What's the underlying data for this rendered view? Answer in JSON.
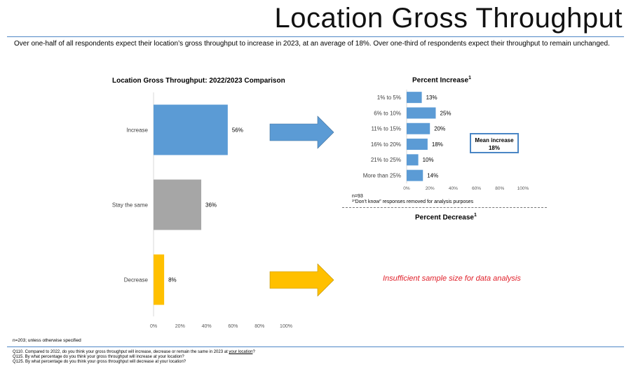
{
  "page": {
    "title": "Location Gross Throughput",
    "subtitle": "Over one-half of all respondents expect their location’s gross throughput to increase in 2023, at an average of 18%.  Over one-third of respondents expect their throughput  to remain unchanged.",
    "sample_note": "n=203; unless otherwise specified",
    "questions": {
      "q110_before": "Q110. Compared  to 2022, do you think your gross throughput will increase, decrease  or remain  the same in 2023 at ",
      "q110_link": "your location",
      "q110_after": "?",
      "q115": "Q115. By what percentage  do you think your gross throughput will increase  at your location?",
      "q125": "Q125. By what percentage  do you think your gross throughput will decrease  at your location?"
    }
  },
  "comparison": {
    "title": "Location Gross Throughput: 2022/2023 Comparison"
  },
  "increase": {
    "title": "Percent Increase",
    "title_sup": "1",
    "n_note": "n=93",
    "dk_note": "¹“Don’t know” responses removed for analysis purposes",
    "mean_label": "Mean increase",
    "mean_value": "18%"
  },
  "decrease": {
    "title": "Percent Decrease",
    "title_sup": "1",
    "message": "Insufficient sample size for data analysis"
  },
  "colors": {
    "blue": "#5b9bd5",
    "gray": "#a6a6a6",
    "gold": "#ffc000",
    "accent_line": "#4f87c6",
    "alert_red": "#e0202a"
  },
  "chart_data": [
    {
      "type": "bar",
      "orientation": "horizontal",
      "title": "Location Gross Throughput: 2022/2023 Comparison",
      "categories": [
        "Increase",
        "Stay the same",
        "Decrease"
      ],
      "values": [
        56,
        36,
        8
      ],
      "value_labels": [
        "56%",
        "36%",
        "8%"
      ],
      "colors": [
        "#5b9bd5",
        "#a6a6a6",
        "#ffc000"
      ],
      "xlim": [
        0,
        100
      ],
      "xticks": [
        "0%",
        "20%",
        "40%",
        "60%",
        "80%",
        "100%"
      ],
      "grid": false
    },
    {
      "type": "bar",
      "orientation": "horizontal",
      "title": "Percent Increase",
      "categories": [
        "1% to 5%",
        "6% to 10%",
        "11% to 15%",
        "16% to 20%",
        "21% to 25%",
        "More than 25%"
      ],
      "values": [
        13,
        25,
        20,
        18,
        10,
        14
      ],
      "value_labels": [
        "13%",
        "25%",
        "20%",
        "18%",
        "10%",
        "14%"
      ],
      "color": "#5b9bd5",
      "xlim": [
        0,
        100
      ],
      "xticks": [
        "0%",
        "20%",
        "40%",
        "60%",
        "80%",
        "100%"
      ],
      "grid": false
    }
  ]
}
